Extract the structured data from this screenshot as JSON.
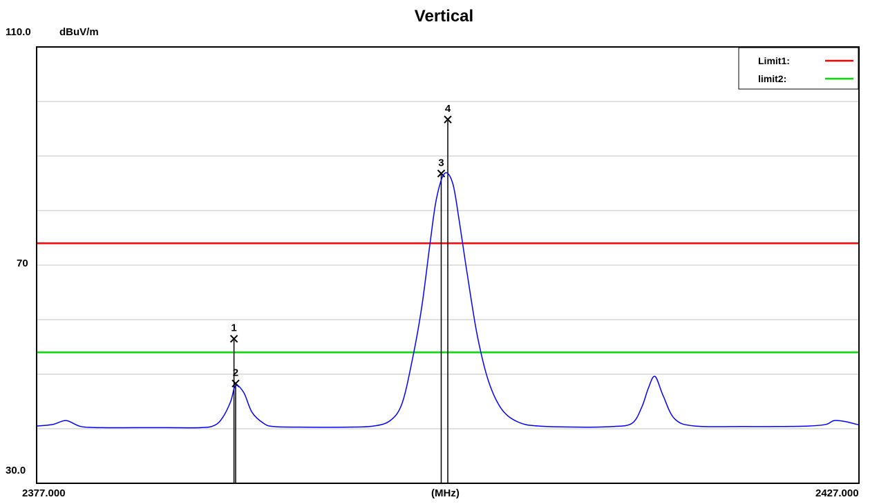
{
  "chart_data": {
    "type": "line",
    "title": "Vertical",
    "unit_label": "dBuV/m",
    "x_unit": "(MHz)",
    "xlim": [
      2377.0,
      2427.0
    ],
    "ylim": [
      30.0,
      110.0
    ],
    "x_tick_labels": [
      "2377.000",
      "2427.000"
    ],
    "y_tick_labels": [
      "110.0",
      "70",
      "30.0"
    ],
    "grid": true,
    "legend_position": "top-right",
    "colors": {
      "trace": "#0000ff",
      "limit1": "#ff0000",
      "limit2": "#00dd00",
      "grid": "#c0c0c0"
    },
    "limits": [
      {
        "name": "Limit1:",
        "value": 74.0,
        "color": "#ff0000"
      },
      {
        "name": "limit2:",
        "value": 54.0,
        "color": "#00dd00"
      }
    ],
    "markers": [
      {
        "label": "1",
        "x": 2389.0,
        "y": 56.5
      },
      {
        "label": "2",
        "x": 2389.1,
        "y": 48.3
      },
      {
        "label": "3",
        "x": 2401.6,
        "y": 86.8
      },
      {
        "label": "4",
        "x": 2402.0,
        "y": 96.7
      }
    ],
    "trace": {
      "x": [
        2377.0,
        2378.0,
        2378.8,
        2379.7,
        2381.0,
        2383.0,
        2385.0,
        2387.0,
        2387.8,
        2388.3,
        2388.8,
        2389.1,
        2389.6,
        2390.1,
        2390.8,
        2391.4,
        2393.0,
        2396.0,
        2397.5,
        2398.5,
        2399.2,
        2399.8,
        2400.4,
        2400.9,
        2401.3,
        2401.8,
        2402.3,
        2402.7,
        2403.2,
        2403.8,
        2404.5,
        2405.3,
        2406.3,
        2407.5,
        2410.0,
        2412.0,
        2413.2,
        2413.8,
        2414.2,
        2414.6,
        2415.1,
        2415.8,
        2417.0,
        2420.0,
        2422.0,
        2424.0,
        2425.0,
        2425.5,
        2426.2,
        2427.0
      ],
      "y": [
        40.5,
        40.8,
        41.5,
        40.4,
        40.2,
        40.2,
        40.2,
        40.2,
        40.6,
        42.0,
        45.0,
        47.9,
        46.6,
        43.0,
        41.0,
        40.4,
        40.3,
        40.3,
        40.5,
        41.5,
        44.5,
        52.0,
        62.0,
        73.5,
        82.0,
        86.8,
        85.0,
        78.0,
        68.0,
        57.0,
        48.5,
        43.5,
        41.2,
        40.5,
        40.3,
        40.4,
        41.0,
        44.0,
        47.5,
        49.6,
        46.0,
        41.8,
        40.5,
        40.4,
        40.4,
        40.5,
        40.8,
        41.5,
        41.3,
        40.7
      ]
    }
  }
}
